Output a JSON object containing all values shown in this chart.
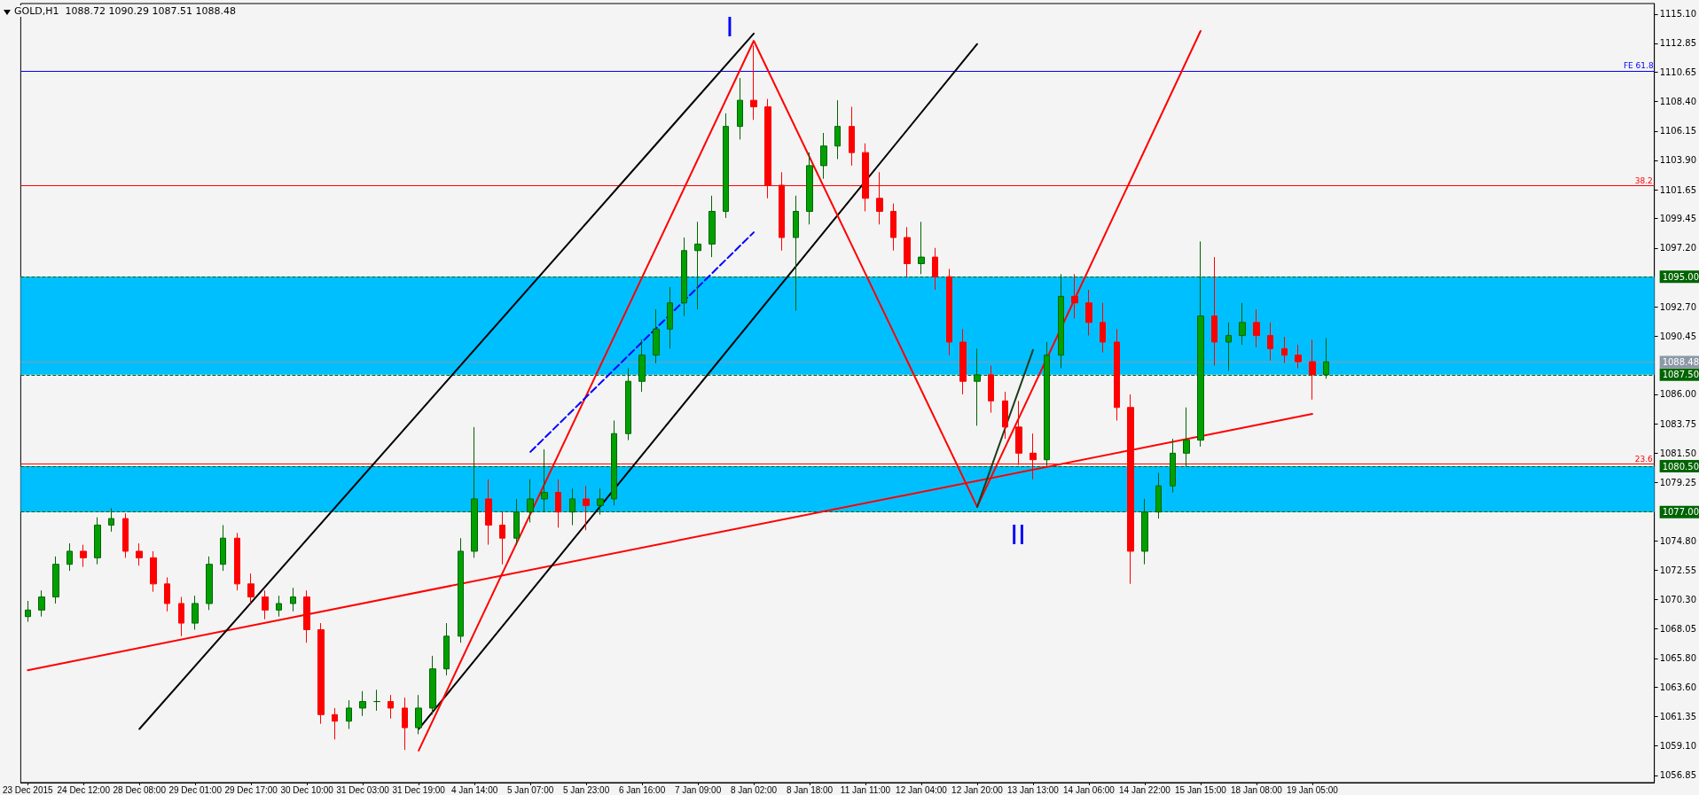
{
  "chart_data": {
    "type": "candlestick",
    "title": "GOLD,H1  1088.72 1090.29 1087.51 1088.48",
    "marker": "none",
    "categories": [
      "23 Dec 2015",
      null,
      null,
      null,
      "24 Dec 12:00",
      null,
      null,
      null,
      "28 Dec 08:00",
      null,
      null,
      null,
      "29 Dec 01:00",
      null,
      null,
      null,
      "29 Dec 17:00",
      null,
      null,
      null,
      "30 Dec 10:00",
      null,
      null,
      null,
      "31 Dec 03:00",
      null,
      null,
      null,
      "31 Dec 19:00",
      null,
      null,
      null,
      "4 Jan 14:00",
      null,
      null,
      null,
      "5 Jan 07:00",
      null,
      null,
      null,
      "5 Jan 23:00",
      null,
      null,
      null,
      "6 Jan 16:00",
      null,
      null,
      null,
      "7 Jan 09:00",
      null,
      null,
      null,
      "8 Jan 02:00",
      null,
      null,
      null,
      "8 Jan 18:00",
      null,
      null,
      null,
      "11 Jan 11:00",
      null,
      null,
      null,
      "12 Jan 04:00",
      null,
      null,
      null,
      "12 Jan 20:00",
      null,
      null,
      null,
      "13 Jan 13:00",
      null,
      null,
      null,
      "14 Jan 06:00",
      null,
      null,
      null,
      "14 Jan 22:00",
      null,
      null,
      null,
      "15 Jan 15:00",
      null,
      null,
      null,
      "18 Jan 08:00",
      null,
      null,
      null,
      "19 Jan 05:00",
      null,
      null,
      null,
      null,
      null,
      null,
      null,
      null,
      null,
      null,
      null,
      null,
      null,
      null,
      null,
      null,
      null,
      null,
      null,
      null,
      null,
      null,
      null,
      null
    ],
    "ohlc": [
      [
        1069.0,
        1070.2,
        1068.6,
        1069.5
      ],
      [
        1069.5,
        1071.0,
        1069.0,
        1070.5
      ],
      [
        1070.5,
        1073.6,
        1070.0,
        1073.0
      ],
      [
        1073.0,
        1074.6,
        1072.5,
        1074.0
      ],
      [
        1074.0,
        1074.5,
        1072.8,
        1073.5
      ],
      [
        1073.5,
        1076.6,
        1073.0,
        1076.0
      ],
      [
        1076.0,
        1077.3,
        1075.5,
        1076.5
      ],
      [
        1076.5,
        1076.9,
        1073.5,
        1074.0
      ],
      [
        1074.0,
        1074.6,
        1072.9,
        1073.5
      ],
      [
        1073.5,
        1074.0,
        1070.9,
        1071.5
      ],
      [
        1071.5,
        1072.0,
        1069.4,
        1070.0
      ],
      [
        1070.0,
        1070.5,
        1067.5,
        1068.5
      ],
      [
        1068.5,
        1070.6,
        1068.0,
        1070.0
      ],
      [
        1070.0,
        1073.6,
        1069.5,
        1073.0
      ],
      [
        1073.0,
        1076.0,
        1072.5,
        1075.0
      ],
      [
        1075.0,
        1075.4,
        1071.0,
        1071.5
      ],
      [
        1071.5,
        1072.3,
        1070.0,
        1070.5
      ],
      [
        1070.5,
        1071.0,
        1068.8,
        1069.5
      ],
      [
        1069.5,
        1070.6,
        1069.0,
        1070.0
      ],
      [
        1070.0,
        1071.2,
        1069.4,
        1070.5
      ],
      [
        1070.5,
        1071.0,
        1067.0,
        1068.0
      ],
      [
        1068.0,
        1068.5,
        1060.8,
        1061.5
      ],
      [
        1061.5,
        1062.0,
        1059.6,
        1061.0
      ],
      [
        1061.0,
        1062.6,
        1060.4,
        1062.0
      ],
      [
        1062.0,
        1063.3,
        1061.4,
        1062.5
      ],
      [
        1062.5,
        1063.4,
        1061.8,
        1062.5
      ],
      [
        1062.5,
        1063.0,
        1061.2,
        1062.0
      ],
      [
        1062.0,
        1062.8,
        1058.8,
        1060.5
      ],
      [
        1060.5,
        1063.0,
        1060.0,
        1062.0
      ],
      [
        1062.0,
        1066.0,
        1061.5,
        1065.0
      ],
      [
        1065.0,
        1068.5,
        1064.5,
        1067.5
      ],
      [
        1067.5,
        1075.0,
        1067.0,
        1074.0
      ],
      [
        1074.0,
        1083.5,
        1073.5,
        1078.0
      ],
      [
        1078.0,
        1079.5,
        1074.5,
        1076.0
      ],
      [
        1076.0,
        1077.0,
        1073.0,
        1075.0
      ],
      [
        1075.0,
        1078.0,
        1074.5,
        1077.0
      ],
      [
        1077.0,
        1079.5,
        1076.2,
        1078.0
      ],
      [
        1078.0,
        1081.8,
        1077.0,
        1078.5
      ],
      [
        1078.5,
        1079.5,
        1075.8,
        1077.0
      ],
      [
        1077.0,
        1078.8,
        1076.0,
        1078.0
      ],
      [
        1078.0,
        1079.0,
        1075.6,
        1077.5
      ],
      [
        1077.5,
        1078.8,
        1076.8,
        1078.0
      ],
      [
        1078.0,
        1084.0,
        1077.5,
        1083.0
      ],
      [
        1083.0,
        1088.0,
        1082.5,
        1087.0
      ],
      [
        1087.0,
        1090.2,
        1086.2,
        1089.0
      ],
      [
        1089.0,
        1092.5,
        1088.4,
        1091.0
      ],
      [
        1091.0,
        1094.2,
        1089.5,
        1093.0
      ],
      [
        1093.0,
        1098.0,
        1092.0,
        1097.0
      ],
      [
        1097.0,
        1099.2,
        1092.5,
        1097.5
      ],
      [
        1097.5,
        1101.2,
        1096.5,
        1100.0
      ],
      [
        1100.0,
        1107.5,
        1099.5,
        1106.5
      ],
      [
        1106.5,
        1110.2,
        1105.5,
        1108.5
      ],
      [
        1108.5,
        1112.7,
        1107.0,
        1108.0
      ],
      [
        1108.0,
        1108.6,
        1101.0,
        1102.0
      ],
      [
        1102.0,
        1103.0,
        1097.0,
        1098.0
      ],
      [
        1098.0,
        1101.2,
        1092.4,
        1100.0
      ],
      [
        1100.0,
        1104.5,
        1099.0,
        1103.5
      ],
      [
        1103.5,
        1106.0,
        1102.5,
        1105.0
      ],
      [
        1105.0,
        1108.5,
        1104.0,
        1106.5
      ],
      [
        1106.5,
        1108.0,
        1103.5,
        1104.5
      ],
      [
        1104.5,
        1105.2,
        1100.0,
        1101.0
      ],
      [
        1101.0,
        1103.0,
        1099.0,
        1100.0
      ],
      [
        1100.0,
        1100.6,
        1097.0,
        1098.0
      ],
      [
        1098.0,
        1098.8,
        1095.0,
        1096.0
      ],
      [
        1096.0,
        1099.2,
        1095.2,
        1096.5
      ],
      [
        1096.5,
        1097.2,
        1094.0,
        1095.0
      ],
      [
        1095.0,
        1095.6,
        1089.0,
        1090.0
      ],
      [
        1090.0,
        1091.0,
        1086.0,
        1087.0
      ],
      [
        1087.0,
        1089.5,
        1083.6,
        1087.5
      ],
      [
        1087.5,
        1088.2,
        1084.6,
        1085.5
      ],
      [
        1085.5,
        1086.2,
        1082.6,
        1083.5
      ],
      [
        1083.5,
        1085.5,
        1080.6,
        1081.5
      ],
      [
        1081.5,
        1083.0,
        1079.5,
        1081.0
      ],
      [
        1081.0,
        1090.0,
        1080.5,
        1089.0
      ],
      [
        1089.0,
        1095.2,
        1088.0,
        1093.5
      ],
      [
        1093.5,
        1095.2,
        1091.8,
        1093.0
      ],
      [
        1093.0,
        1094.0,
        1090.5,
        1091.5
      ],
      [
        1091.5,
        1093.0,
        1089.2,
        1090.0
      ],
      [
        1090.0,
        1091.0,
        1084.0,
        1085.0
      ],
      [
        1085.0,
        1086.0,
        1071.5,
        1074.0
      ],
      [
        1074.0,
        1078.0,
        1073.0,
        1077.0
      ],
      [
        1077.0,
        1080.0,
        1076.5,
        1079.0
      ],
      [
        1079.0,
        1082.6,
        1078.5,
        1081.5
      ],
      [
        1081.5,
        1085.0,
        1080.5,
        1082.5
      ],
      [
        1082.5,
        1097.7,
        1082.0,
        1092.0
      ],
      [
        1092.0,
        1096.5,
        1088.2,
        1090.0
      ],
      [
        1090.0,
        1091.5,
        1087.8,
        1090.5
      ],
      [
        1090.5,
        1093.0,
        1089.8,
        1091.5
      ],
      [
        1091.5,
        1092.5,
        1089.6,
        1090.5
      ],
      [
        1090.5,
        1091.5,
        1088.6,
        1089.5
      ],
      [
        1089.5,
        1090.4,
        1088.4,
        1089.0
      ],
      [
        1089.0,
        1089.8,
        1088.0,
        1088.5
      ],
      [
        1088.5,
        1090.2,
        1085.6,
        1087.5
      ],
      [
        1087.5,
        1090.3,
        1087.2,
        1088.48
      ],
      null,
      null,
      null,
      null,
      null,
      null,
      null,
      null,
      null,
      null,
      null,
      null,
      null,
      null,
      null,
      null,
      null,
      null,
      null,
      null,
      null,
      null,
      null
    ],
    "series": [
      {
        "type": "line",
        "color": "#ff0000",
        "x": [
          "23 Dec 2015",
          "19 Jan 05:00"
        ],
        "values": [
          1064.9,
          1084.5
        ]
      },
      {
        "type": "line",
        "color": "#000000",
        "x": [
          "28 Dec 08:00",
          "8 Jan 02:00"
        ],
        "values": [
          1060.4,
          1113.6
        ]
      },
      {
        "type": "line",
        "color": "#000000",
        "x": [
          "31 Dec 19:00",
          "12 Jan 20:00"
        ],
        "values": [
          1060.4,
          1112.8
        ]
      },
      {
        "type": "line",
        "color": "#ff0000",
        "x": [
          "31 Dec 19:00",
          "8 Jan 02:00",
          "12 Jan 20:00"
        ],
        "values": [
          1058.75,
          1113.05,
          1077.4
        ]
      },
      {
        "type": "line",
        "color": "#ff0000",
        "x": [
          "12 Jan 20:00",
          "15 Jan 15:00"
        ],
        "values": [
          1077.4,
          1113.8
        ]
      },
      {
        "type": "line",
        "color": "#1e3b1e",
        "x": [
          "12 Jan 20:00",
          "13 Jan 13:00"
        ],
        "values": [
          1077.4,
          1089.4
        ]
      },
      {
        "type": "line",
        "color": "#0000ff",
        "line_style": "dashed",
        "x": [
          "5 Jan 07:00",
          "8 Jan 02:00"
        ],
        "values": [
          1081.6,
          1098.4
        ]
      }
    ],
    "ylim": [
      1056.3,
      1115.9
    ],
    "yticks": [
      {
        "value": 1056.85,
        "label": "1056.85"
      },
      {
        "value": 1059.1,
        "label": "1059.10"
      },
      {
        "value": 1061.35,
        "label": "1061.35"
      },
      {
        "value": 1063.6,
        "label": "1063.60"
      },
      {
        "value": 1065.8,
        "label": "1065.80"
      },
      {
        "value": 1068.05,
        "label": "1068.05"
      },
      {
        "value": 1070.3,
        "label": "1070.30"
      },
      {
        "value": 1072.55,
        "label": "1072.55"
      },
      {
        "value": 1074.8,
        "label": "1074.80"
      },
      {
        "value": 1079.25,
        "label": "1079.25"
      },
      {
        "value": 1081.5,
        "label": "1081.50"
      },
      {
        "value": 1083.75,
        "label": "1083.75"
      },
      {
        "value": 1086,
        "label": "1086.00"
      },
      {
        "value": 1090.45,
        "label": "1090.45"
      },
      {
        "value": 1092.7,
        "label": "1092.70"
      },
      {
        "value": 1097.2,
        "label": "1097.20"
      },
      {
        "value": 1099.45,
        "label": "1099.45"
      },
      {
        "value": 1101.65,
        "label": "1101.65"
      },
      {
        "value": 1103.9,
        "label": "1103.90"
      },
      {
        "value": 1106.15,
        "label": "1106.15"
      },
      {
        "value": 1108.4,
        "label": "1108.40"
      },
      {
        "value": 1110.65,
        "label": "1110.65"
      },
      {
        "value": 1112.85,
        "label": "1112.85"
      },
      {
        "value": 1115.1,
        "label": "1115.10"
      }
    ],
    "ref_lines": [
      {
        "axis": "y",
        "value": 1110.75,
        "label": "FE 61.8",
        "color": "#0000ff"
      },
      {
        "axis": "y",
        "value": 1101.95,
        "color": "#ff0000"
      },
      {
        "axis": "y",
        "value": 1095,
        "label": "1095.00",
        "color": "#006400",
        "line_style": "dashed"
      },
      {
        "axis": "y",
        "value": 1088.48,
        "label": "1088.48",
        "color": "#8c99a6"
      },
      {
        "axis": "y",
        "value": 1087.5,
        "label": "1087.50",
        "color": "#006400",
        "line_style": "dashed"
      },
      {
        "axis": "y",
        "value": 1080.7,
        "color": "#ff0000"
      },
      {
        "axis": "y",
        "value": 1080.5,
        "label": "1080.50",
        "color": "#006400",
        "line_style": "dashed"
      },
      {
        "axis": "y",
        "value": 1077,
        "label": "1077.00",
        "color": "#006400",
        "line_style": "dashed"
      }
    ],
    "bands": [
      {
        "axis": "y",
        "from": 1087.5,
        "to": 1095,
        "color": "#00bfff"
      },
      {
        "axis": "y",
        "from": 1077,
        "to": 1080.5,
        "color": "#00bfff"
      }
    ],
    "annotations": [
      "I",
      "II",
      {
        "text": "38.2",
        "y": 1101.95
      },
      {
        "text": "23.6",
        "y": 1080.7
      }
    ]
  }
}
